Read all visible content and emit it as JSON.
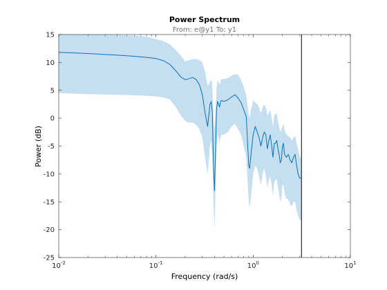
{
  "chart_data": {
    "type": "line",
    "title": "Power Spectrum",
    "subtitle": "From: e@y1  To: y1",
    "xlabel": "Frequency  (rad/s)",
    "ylabel": "Power (dB)",
    "xscale": "log",
    "xlim": [
      0.01,
      10
    ],
    "ylim": [
      -25,
      15
    ],
    "grid": false,
    "x_tick_labels": [
      {
        "value": 0.01,
        "base": "10",
        "exp": "-2"
      },
      {
        "value": 0.1,
        "base": "10",
        "exp": "-1"
      },
      {
        "value": 1,
        "base": "10",
        "exp": "0"
      },
      {
        "value": 10,
        "base": "10",
        "exp": "1"
      }
    ],
    "y_ticks": [
      15,
      10,
      5,
      0,
      -5,
      -10,
      -15,
      -20,
      -25
    ],
    "nyquist_line_x": 3.14,
    "line_color": "#0072bd",
    "band_color": "#c5dff0",
    "series": [
      {
        "x": [
          0.01,
          0.02,
          0.04,
          0.06,
          0.08,
          0.1,
          0.12,
          0.14,
          0.16,
          0.18,
          0.2,
          0.22,
          0.24,
          0.26,
          0.28,
          0.3,
          0.32,
          0.34,
          0.36,
          0.37,
          0.38,
          0.39,
          0.4,
          0.41,
          0.42,
          0.43,
          0.44,
          0.45,
          0.46,
          0.47,
          0.5,
          0.55,
          0.6,
          0.65,
          0.7,
          0.75,
          0.8,
          0.85,
          0.9,
          0.92,
          0.95,
          1.0,
          1.05,
          1.1,
          1.15,
          1.2,
          1.25,
          1.3,
          1.35,
          1.4,
          1.45,
          1.5,
          1.55,
          1.6,
          1.65,
          1.7,
          1.75,
          1.8,
          1.85,
          1.9,
          1.95,
          2.0,
          2.05,
          2.1,
          2.2,
          2.3,
          2.4,
          2.5,
          2.6,
          2.7,
          2.8,
          2.9,
          3.0,
          3.14
        ],
        "values": [
          11.8,
          11.6,
          11.3,
          11.1,
          10.9,
          10.7,
          10.3,
          9.6,
          8.5,
          7.4,
          6.9,
          7.1,
          7.3,
          6.9,
          6.0,
          4.2,
          1.0,
          -1.5,
          2.5,
          3.0,
          1.0,
          -8.0,
          -13.0,
          -6.0,
          1.5,
          3.0,
          2.5,
          2.0,
          2.8,
          3.2,
          3.0,
          3.3,
          3.8,
          4.2,
          3.6,
          2.8,
          1.5,
          0.2,
          -8.5,
          -9.0,
          -6.5,
          -3.0,
          -1.5,
          -2.5,
          -3.5,
          -5.0,
          -3.5,
          -2.5,
          -3.0,
          -5.5,
          -4.0,
          -3.0,
          -5.0,
          -7.0,
          -4.5,
          -4.5,
          -4.0,
          -5.5,
          -6.5,
          -8.0,
          -7.5,
          -5.0,
          -4.5,
          -6.5,
          -7.0,
          -6.5,
          -7.5,
          -8.0,
          -7.0,
          -6.5,
          -8.5,
          -10.0,
          -10.7,
          -10.8
        ],
        "upper": [
          15.0,
          15.0,
          14.9,
          14.8,
          14.6,
          14.2,
          13.8,
          13.2,
          12.2,
          11.2,
          10.2,
          10.4,
          10.6,
          10.6,
          10.4,
          10.0,
          8.3,
          5.8,
          6.5,
          7.0,
          6.0,
          0.5,
          -2.0,
          1.5,
          5.5,
          6.8,
          6.5,
          6.0,
          6.5,
          7.0,
          7.0,
          7.2,
          7.6,
          7.9,
          7.8,
          6.9,
          5.6,
          4.0,
          0.5,
          0.0,
          1.5,
          3.2,
          2.8,
          2.5,
          2.0,
          0.8,
          2.0,
          2.5,
          2.0,
          0.5,
          1.0,
          1.5,
          0.0,
          -1.5,
          0.5,
          0.8,
          0.8,
          -0.5,
          -1.5,
          -2.5,
          -2.0,
          -1.5,
          -1.0,
          -2.0,
          -3.0,
          -3.2,
          -3.5,
          -4.0,
          -3.5,
          -3.2,
          -4.5,
          -5.5,
          -6.8,
          -7.3
        ],
        "lower": [
          4.5,
          4.3,
          4.2,
          4.1,
          4.0,
          3.9,
          3.7,
          3.3,
          2.0,
          0.5,
          -0.5,
          -0.8,
          -0.8,
          -1.2,
          -2.0,
          -3.5,
          -7.0,
          -10.0,
          -5.0,
          -4.0,
          -7.0,
          -15.0,
          -20.0,
          -13.0,
          -5.0,
          -3.0,
          -3.5,
          -4.5,
          -3.5,
          -3.0,
          -3.0,
          -2.5,
          -1.5,
          -1.0,
          -2.0,
          -3.0,
          -5.0,
          -7.0,
          -15.0,
          -16.0,
          -14.0,
          -10.0,
          -8.5,
          -9.0,
          -10.5,
          -12.0,
          -10.0,
          -9.0,
          -10.5,
          -12.5,
          -11.0,
          -10.5,
          -12.0,
          -14.0,
          -11.5,
          -11.0,
          -11.0,
          -12.5,
          -13.5,
          -15.0,
          -14.5,
          -12.0,
          -12.0,
          -13.5,
          -14.5,
          -14.5,
          -15.5,
          -15.8,
          -15.0,
          -15.0,
          -16.5,
          -17.5,
          -18.2,
          -18.3
        ]
      }
    ]
  }
}
